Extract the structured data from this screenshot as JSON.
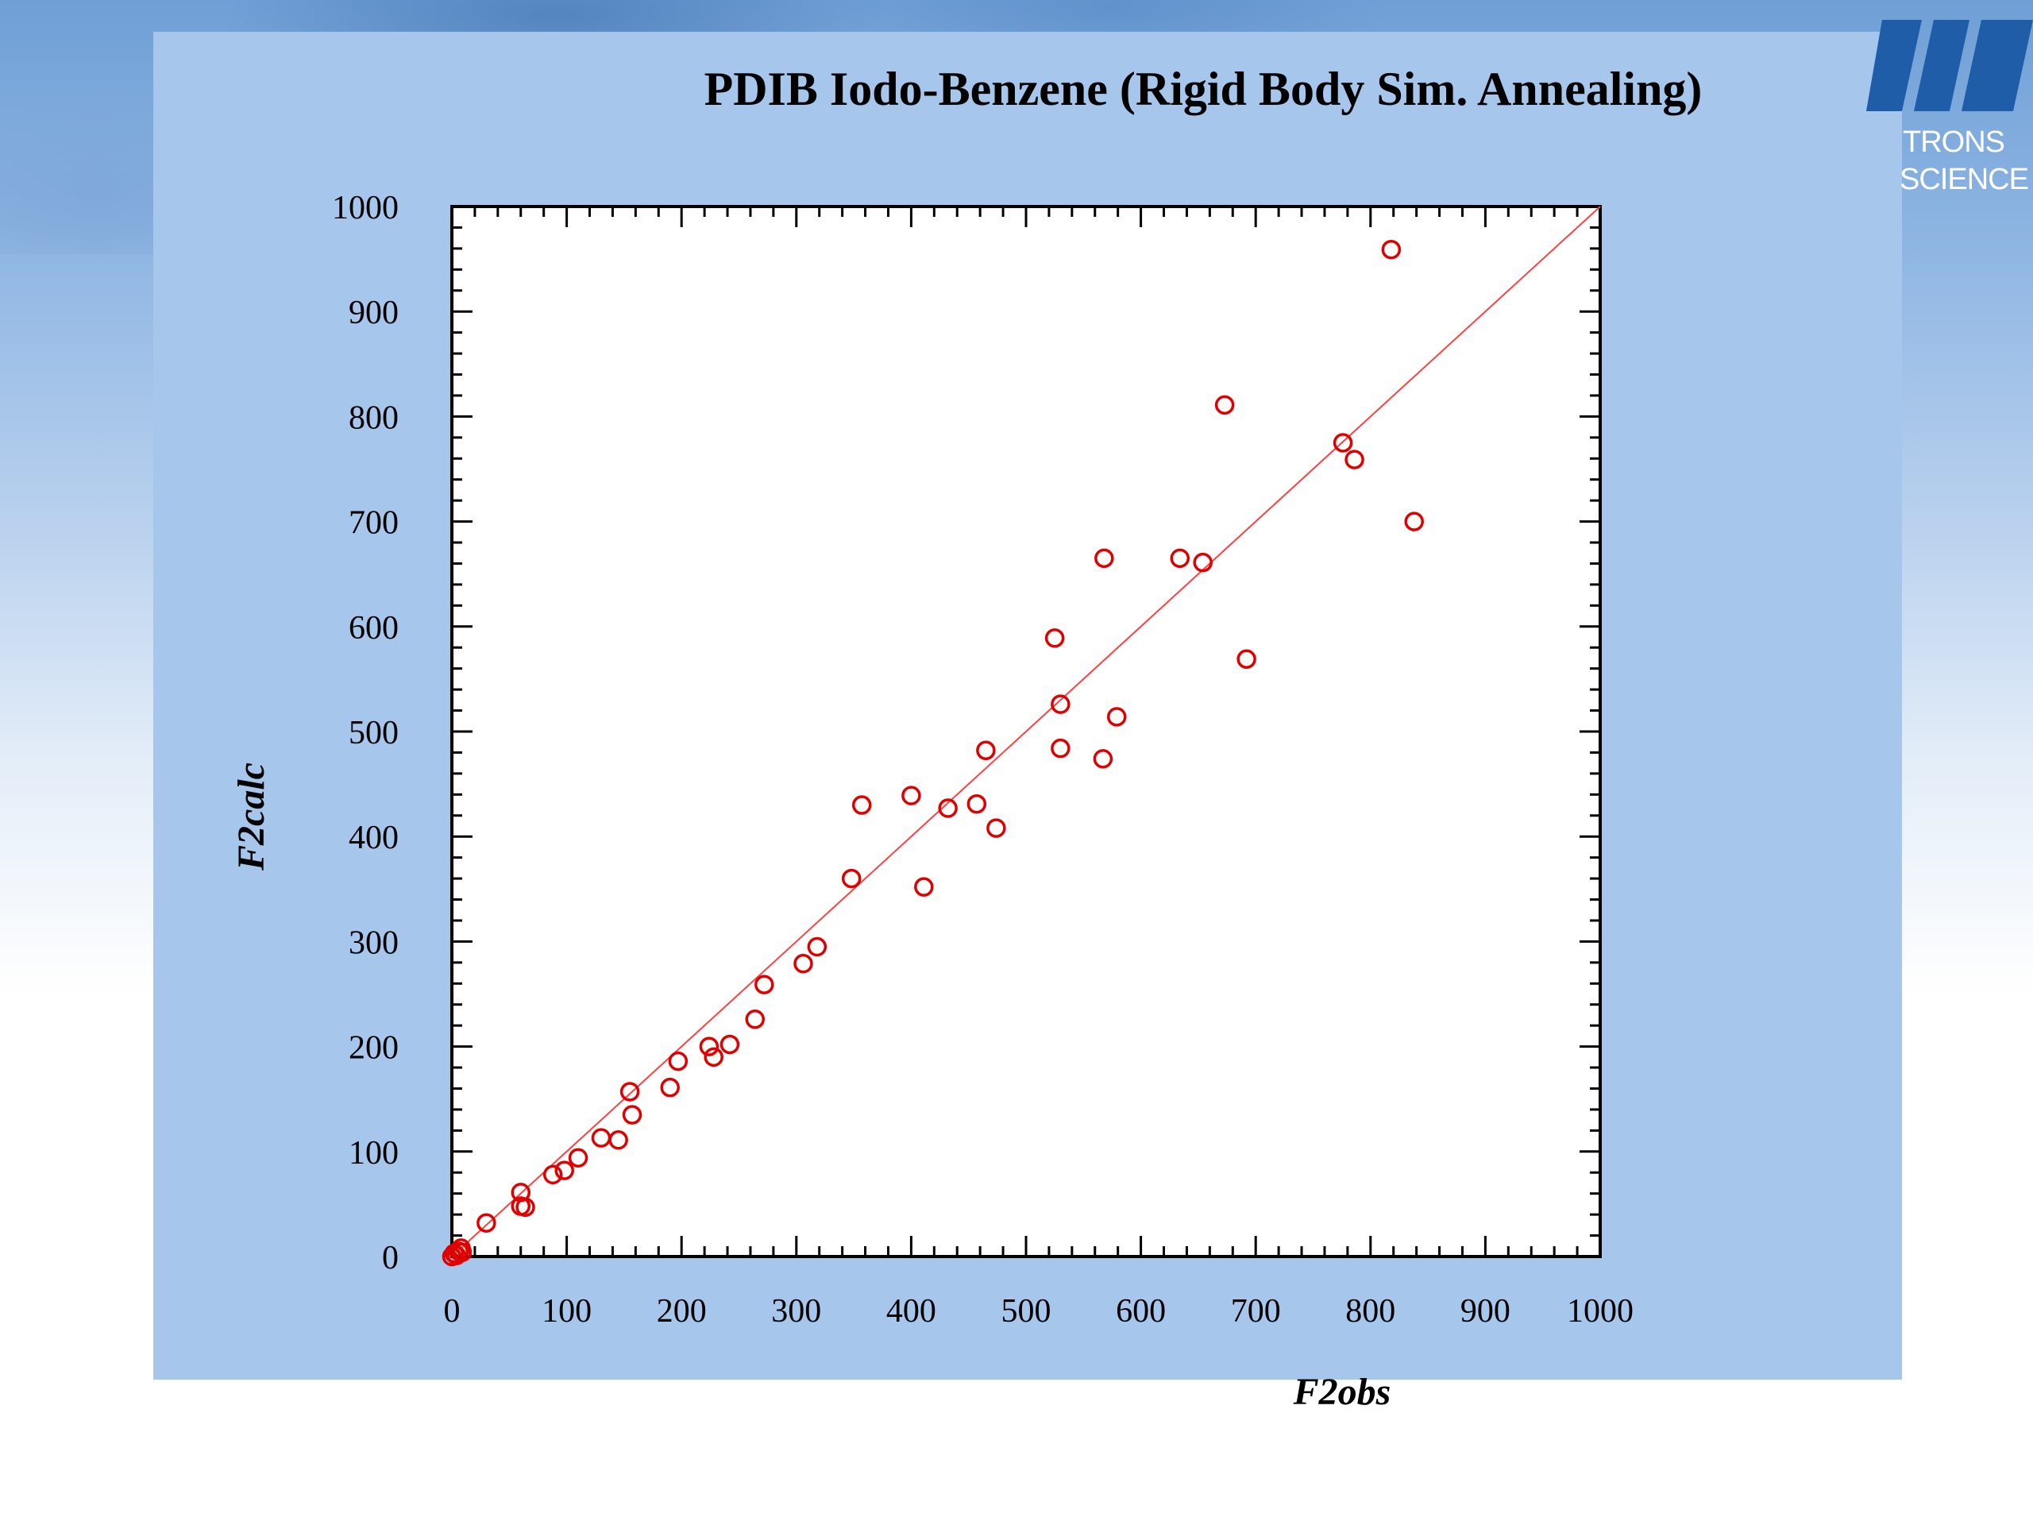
{
  "logo": {
    "text_line1": "TRONS",
    "text_line2": "SCIENCE"
  },
  "colors": {
    "panel": "#a6c6ec",
    "marker": "#e00000",
    "fit_line": "#ff4040",
    "logo": "#1f5da8"
  },
  "chart_data": {
    "type": "scatter",
    "title": "PDIB Iodo-Benzene (Rigid Body Sim. Annealing)",
    "xlabel": "F2obs",
    "ylabel": "F2calc",
    "xlim": [
      0,
      1000
    ],
    "ylim": [
      0,
      1000
    ],
    "x_ticks": [
      0,
      100,
      200,
      300,
      400,
      500,
      600,
      700,
      800,
      900,
      1000
    ],
    "y_ticks": [
      0,
      100,
      200,
      300,
      400,
      500,
      600,
      700,
      800,
      900,
      1000
    ],
    "fit_line": {
      "x": [
        0,
        1000
      ],
      "y": [
        0,
        1000
      ]
    },
    "grid": false,
    "points": [
      {
        "x": 0,
        "y": 0
      },
      {
        "x": 2,
        "y": 3
      },
      {
        "x": 4,
        "y": 1
      },
      {
        "x": 6,
        "y": 5
      },
      {
        "x": 8,
        "y": 8
      },
      {
        "x": 9,
        "y": 4
      },
      {
        "x": 30,
        "y": 32
      },
      {
        "x": 60,
        "y": 61
      },
      {
        "x": 60,
        "y": 48
      },
      {
        "x": 64,
        "y": 47
      },
      {
        "x": 88,
        "y": 78
      },
      {
        "x": 98,
        "y": 82
      },
      {
        "x": 110,
        "y": 94
      },
      {
        "x": 130,
        "y": 113
      },
      {
        "x": 145,
        "y": 111
      },
      {
        "x": 155,
        "y": 157
      },
      {
        "x": 157,
        "y": 135
      },
      {
        "x": 190,
        "y": 161
      },
      {
        "x": 197,
        "y": 186
      },
      {
        "x": 224,
        "y": 200
      },
      {
        "x": 228,
        "y": 190
      },
      {
        "x": 242,
        "y": 202
      },
      {
        "x": 264,
        "y": 226
      },
      {
        "x": 272,
        "y": 259
      },
      {
        "x": 306,
        "y": 279
      },
      {
        "x": 318,
        "y": 295
      },
      {
        "x": 348,
        "y": 360
      },
      {
        "x": 357,
        "y": 430
      },
      {
        "x": 400,
        "y": 439
      },
      {
        "x": 411,
        "y": 352
      },
      {
        "x": 432,
        "y": 427
      },
      {
        "x": 457,
        "y": 431
      },
      {
        "x": 465,
        "y": 482
      },
      {
        "x": 474,
        "y": 408
      },
      {
        "x": 525,
        "y": 589
      },
      {
        "x": 530,
        "y": 526
      },
      {
        "x": 530,
        "y": 484
      },
      {
        "x": 567,
        "y": 474
      },
      {
        "x": 568,
        "y": 665
      },
      {
        "x": 579,
        "y": 514
      },
      {
        "x": 634,
        "y": 665
      },
      {
        "x": 654,
        "y": 661
      },
      {
        "x": 673,
        "y": 811
      },
      {
        "x": 692,
        "y": 569
      },
      {
        "x": 776,
        "y": 775
      },
      {
        "x": 786,
        "y": 759
      },
      {
        "x": 818,
        "y": 959
      },
      {
        "x": 838,
        "y": 700
      }
    ]
  }
}
